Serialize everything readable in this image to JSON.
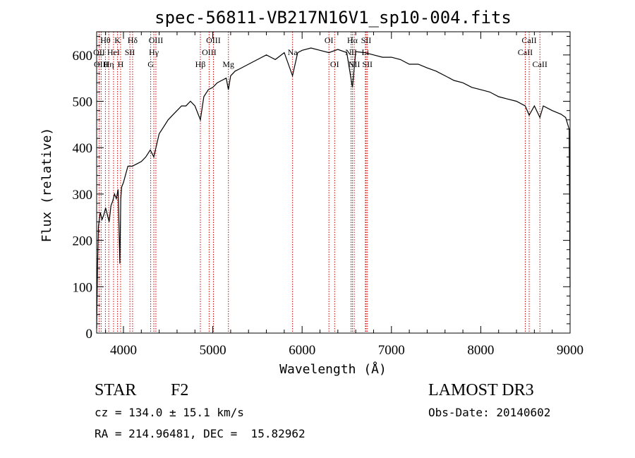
{
  "chart_data": {
    "type": "line",
    "title": "spec-56811-VB217N16V1_sp10-004.fits",
    "xlabel": "Wavelength (Å)",
    "ylabel": "Flux (relative)",
    "xlim": [
      3700,
      9000
    ],
    "ylim": [
      0,
      650
    ],
    "xticks": [
      4000,
      5000,
      6000,
      7000,
      8000,
      9000
    ],
    "yticks": [
      0,
      100,
      200,
      300,
      400,
      500,
      600
    ],
    "grid": false,
    "series": [
      {
        "name": "flux",
        "x": [
          3700,
          3710,
          3720,
          3740,
          3760,
          3780,
          3800,
          3820,
          3840,
          3860,
          3880,
          3900,
          3920,
          3940,
          3960,
          3970,
          3980,
          4000,
          4050,
          4100,
          4150,
          4200,
          4250,
          4300,
          4340,
          4400,
          4450,
          4500,
          4550,
          4600,
          4650,
          4700,
          4750,
          4800,
          4861,
          4900,
          4950,
          5000,
          5050,
          5100,
          5150,
          5175,
          5200,
          5250,
          5300,
          5400,
          5500,
          5600,
          5700,
          5800,
          5893,
          5950,
          6000,
          6100,
          6200,
          6300,
          6400,
          6500,
          6563,
          6600,
          6700,
          6800,
          6900,
          7000,
          7100,
          7200,
          7300,
          7400,
          7500,
          7600,
          7700,
          7800,
          7900,
          8000,
          8100,
          8200,
          8300,
          8400,
          8498,
          8542,
          8600,
          8662,
          8700,
          8800,
          8900,
          8950,
          8990,
          9000
        ],
        "y": [
          10,
          150,
          230,
          260,
          245,
          255,
          270,
          255,
          240,
          275,
          285,
          300,
          290,
          310,
          150,
          290,
          315,
          325,
          360,
          360,
          365,
          370,
          380,
          395,
          380,
          430,
          445,
          460,
          470,
          480,
          490,
          490,
          500,
          490,
          460,
          510,
          525,
          530,
          540,
          545,
          550,
          525,
          555,
          565,
          570,
          580,
          590,
          600,
          590,
          605,
          555,
          605,
          610,
          615,
          610,
          605,
          612,
          605,
          530,
          607,
          605,
          600,
          595,
          595,
          590,
          580,
          580,
          572,
          565,
          555,
          545,
          540,
          530,
          525,
          520,
          510,
          505,
          500,
          490,
          470,
          490,
          465,
          490,
          480,
          472,
          465,
          440,
          100
        ]
      }
    ],
    "lines": [
      {
        "label": "Hθ",
        "x": 3798,
        "row": 0
      },
      {
        "label": "OII",
        "x": 3727,
        "row": 1
      },
      {
        "label": "OIII",
        "x": 3750,
        "row": 2
      },
      {
        "label": "Hη",
        "x": 3835,
        "row": 2
      },
      {
        "label": "HeI",
        "x": 3889,
        "row": 1
      },
      {
        "label": "K",
        "x": 3934,
        "row": 0
      },
      {
        "label": "H",
        "x": 3968,
        "row": 2
      },
      {
        "label": "SII",
        "x": 4072,
        "row": 1
      },
      {
        "label": "Hδ",
        "x": 4102,
        "row": 0
      },
      {
        "label": "OIII",
        "x": 4363,
        "row": 0
      },
      {
        "label": "Hγ",
        "x": 4340,
        "row": 1
      },
      {
        "label": "G",
        "x": 4305,
        "row": 2
      },
      {
        "label": "Hβ",
        "x": 4861,
        "row": 2
      },
      {
        "label": "OIII",
        "x": 5007,
        "row": 0
      },
      {
        "label": "OIII",
        "x": 4959,
        "row": 1
      },
      {
        "label": "Mg",
        "x": 5175,
        "row": 2
      },
      {
        "label": "Na",
        "x": 5893,
        "row": 1
      },
      {
        "label": "OI",
        "x": 6300,
        "row": 0
      },
      {
        "label": "OI",
        "x": 6364,
        "row": 2
      },
      {
        "label": "Hα",
        "x": 6563,
        "row": 0
      },
      {
        "label": "NII",
        "x": 6548,
        "row": 1
      },
      {
        "label": "NII",
        "x": 6583,
        "row": 2
      },
      {
        "label": "Li",
        "x": 6708,
        "row": 1
      },
      {
        "label": "SII",
        "x": 6717,
        "row": 0
      },
      {
        "label": "SII",
        "x": 6731,
        "row": 2
      },
      {
        "label": "CaII",
        "x": 8542,
        "row": 0
      },
      {
        "label": "CaII",
        "x": 8498,
        "row": 1
      },
      {
        "label": "CaII",
        "x": 8662,
        "row": 2
      }
    ]
  },
  "footer": {
    "class_label": "STAR",
    "subclass": "F2",
    "redshift": "cz = 134.0 ± 15.1 km/s",
    "coords": "RA = 214.96481, DEC =  15.82962",
    "survey": "LAMOST DR3",
    "obs_date": "Obs-Date: 20140602"
  },
  "colors": {
    "line_marker": "#cc0000",
    "spectrum": "#000000"
  }
}
